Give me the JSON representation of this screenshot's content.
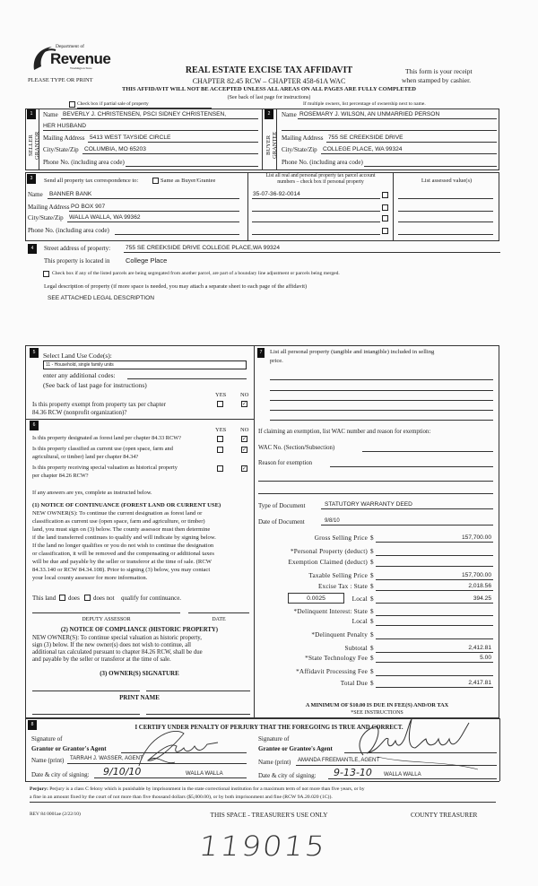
{
  "header": {
    "logo_top": "Department of",
    "logo_main": "Revenue",
    "logo_state": "Washington State",
    "please": "PLEASE TYPE OR PRINT",
    "title": "REAL ESTATE EXCISE TAX AFFIDAVIT",
    "chapters": "CHAPTER 82.45 RCW – CHAPTER 458-61A WAC",
    "warning": "THIS AFFIDAVIT WILL NOT BE ACCEPTED UNLESS ALL AREAS ON ALL PAGES ARE FULLY COMPLETED",
    "instructions": "(See back of last page for instructions)",
    "receipt_line1": "This form is your receipt",
    "receipt_line2": "when stamped by cashier.",
    "partial_sale_label": "Check box if partial sale of property",
    "partial_sale_checked": false,
    "multiple_owners": "If multiple owners, list percentage of ownership next to name."
  },
  "seller": {
    "num": "1",
    "side_label": "SELLER GRANTOR",
    "name_label": "Name",
    "name": "BEVERLY J. CHRISTENSEN, PSCI SIDNEY CHRISTENSEN,",
    "name_line2": "HER HUSBAND",
    "mailing_label": "Mailing Address",
    "mailing": "5413 WEST TAYSIDE CIRCLE",
    "city_label": "City/State/Zip",
    "city": "COLUMBIA, MO 65203",
    "phone_label": "Phone No. (including area code)"
  },
  "buyer": {
    "num": "2",
    "side_label": "BUYER GRANTEE",
    "name_label": "Name",
    "name": "ROSEMARY J. WILSON, AN UNMARRIED PERSON",
    "mailing_label": "Mailing Address",
    "mailing": "755 SE CREEKSIDE DRIVE",
    "city_label": "City/State/Zip",
    "city": "COLLEGE PLACE, WA 99324",
    "phone_label": "Phone No. (including area code)"
  },
  "correspondence": {
    "num": "3",
    "send_label": "Send all property tax correspondence to:",
    "same_label": "Same as Buyer/Grantee",
    "same_checked": false,
    "name_label": "Name",
    "name": "BANNER BANK",
    "mailing_label": "Mailing Address",
    "mailing": "PO BOX 907",
    "city_label": "City/State/Zip",
    "city": "WALLA WALLA, WA 99362",
    "phone_label": "Phone No. (including area code)",
    "parcel_header_line1": "List all real and personal property tax parcel account",
    "parcel_header_line2": "numbers – check box if personal property",
    "assessed_header": "List assessed value(s)",
    "parcels": [
      "35-07-36-92-0014",
      "",
      "",
      ""
    ]
  },
  "property": {
    "num": "4",
    "street_label": "Street address of property:",
    "street": "755 SE CREEKSIDE DRIVE COLLEGE PLACE,WA 99324",
    "located_label": "This property is located in",
    "located": "College Place",
    "segregated_label": "Check box if any of the listed parcels are being segregated from another parcel, are part of a boundary line adjustment or parcels being merged.",
    "segregated_checked": false,
    "legal_label": "Legal description of property (if more space is needed, you may attach a separate sheet to each page of the affidavit)",
    "legal": "SEE ATTACHED LEGAL DESCRIPTION"
  },
  "section5": {
    "num": "5",
    "land_use_label": "Select Land Use Code(s):",
    "land_use": "11 - Household, single family units",
    "additional_label": "enter any additional codes:",
    "see_back": "(See back of last page for instructions)",
    "yes": "YES",
    "no": "NO",
    "exempt_q_line1": "Is this property exempt from property tax per chapter",
    "exempt_q_line2": "84.36 RCW (nonprofit organization)?",
    "exempt_answer": "no"
  },
  "section6": {
    "num": "6",
    "yes": "YES",
    "no": "NO",
    "questions": [
      {
        "line1": "Is this property designated as forest land per chapter 84.33 RCW?",
        "line2": "",
        "answer": "no"
      },
      {
        "line1": "Is this property classified as current use (open space, farm and",
        "line2": "agricultural, or timber) land per chapter 84.34?",
        "answer": "no"
      },
      {
        "line1": "Is this property receiving special valuation as historical property",
        "line2": "per chapter 84.26 RCW?",
        "answer": "no"
      }
    ],
    "if_yes": "If any answers are yes, complete as instructed below.",
    "notice1_title": "(1) NOTICE OF CONTINUANCE  (FOREST LAND OR CURRENT USE)",
    "notice1_lines": [
      "NEW OWNER(S): To continue the current designation as forest land or",
      "classification as current use (open space, farm and agriculture, or timber)",
      "land, you must sign on (3) below. The county assessor must then determine",
      "if the land transferred continues to qualify and will indicate by signing below.",
      "If the land no longer qualifies or you do not wish to continue the designation",
      "or classification, it will be removed and the compensating or additional taxes",
      "will be due and payable by the seller or transferor at the time of sale. (RCW",
      "84.33.140 or RCW 84.34.108). Prior to signing (3) below, you may contact",
      "your local county assessor for more information."
    ],
    "this_land": "This land",
    "does": "does",
    "does_not": "does not",
    "qualify": "qualify for continuance.",
    "deputy_assessor": "DEPUTY ASSESSOR",
    "date": "DATE",
    "notice2_title": "(2) NOTICE OF COMPLIANCE (HISTORIC PROPERTY)",
    "notice2_lines": [
      "NEW OWNER(S): To continue special valuation as historic property,",
      "sign (3) below. If the new owner(s) does not wish to continue, all",
      "additional tax calculated pursuant to chapter 84.26 RCW, shall be due",
      "and payable by the seller or transferor at the time of sale."
    ],
    "owner_signature": "(3)  OWNER(S) SIGNATURE",
    "print_name": "PRINT NAME"
  },
  "section7": {
    "num": "7",
    "personal_label_line1": "List all  personal property (tangible and intangible) included in selling",
    "personal_label_line2": "price.",
    "exemption_label": "If claiming an exemption, list WAC number and reason for exemption:",
    "wac_label": "WAC No. (Section/Subsection)",
    "reason_label": "Reason for exemption",
    "doc_type_label": "Type of Document",
    "doc_type": "STATUTORY WARRANTY DEED",
    "doc_date_label": "Date of Document",
    "doc_date": "9/8/10",
    "local_rate": "0.0025",
    "amounts": [
      {
        "label": "Gross Selling Price",
        "value": "157,700.00"
      },
      {
        "label": "*Personal Property (deduct)",
        "value": ""
      },
      {
        "label": "Exemption Claimed (deduct)",
        "value": ""
      },
      {
        "label": "Taxable Selling Price",
        "value": "157,700.00"
      },
      {
        "label": "Excise Tax : State",
        "value": "2,018.56"
      },
      {
        "label": "Local",
        "value": "394.25"
      },
      {
        "label": "*Delinquent Interest: State",
        "value": ""
      },
      {
        "label": "Local",
        "value": ""
      },
      {
        "label": "*Delinquent Penalty",
        "value": ""
      },
      {
        "label": "Subtotal",
        "value": "2,412.81"
      },
      {
        "label": "*State Technology Fee",
        "value": "5.00"
      },
      {
        "label": "*Affidavit Processing Fee",
        "value": ""
      },
      {
        "label": "Total Due",
        "value": "2,417.81"
      }
    ],
    "currency": "$",
    "minimum_note": "A MINIMUM OF $10.00 IS DUE IN FEE(S) AND/OR TAX",
    "see_instructions": "*SEE INSTRUCTIONS"
  },
  "section8": {
    "num": "8",
    "certify": "I CERTIFY UNDER PENALTY OF PERJURY THAT THE FOREGOING IS TRUE AND CORRECT.",
    "grantor": {
      "sig_label1": "Signature of",
      "sig_label2": "Grantor or Grantor's Agent",
      "name_label": "Name (print)",
      "name": "TARRAH J. WASSER, AGENT",
      "date_label": "Date & city of signing:",
      "date": "9/10/10",
      "city": "WALLA WALLA"
    },
    "grantee": {
      "sig_label1": "Signature of",
      "sig_label2": "Grantee or Grantee's Agent",
      "name_label": "Name (print)",
      "name": "AMANDA FREEMANTLE, AGENT",
      "date_label": "Date & city of signing:",
      "date": "9-13-10",
      "city": "WALLA WALLA"
    }
  },
  "footer": {
    "perjury_bold": "Perjury:",
    "perjury_line1": "Perjury is a class C felony which is punishable by imprisonment in the state correctional institution for a maximum term of not more than five years, or by",
    "perjury_line2": "a fine in an amount fixed by the court of not more than five thousand dollars ($5,000.00), or by both imprisonment and fine (RCW 9A.20.020 (1C)).",
    "form_id": "REV 84 0001ae (2/22/10)",
    "treasurer_space": "THIS SPACE - TREASURER'S USE ONLY",
    "county_treasurer": "COUNTY TREASURER",
    "handwritten_number": "119015"
  }
}
